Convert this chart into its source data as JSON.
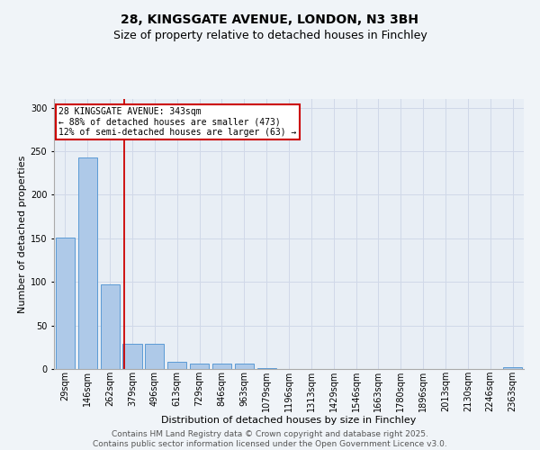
{
  "title": "28, KINGSGATE AVENUE, LONDON, N3 3BH",
  "subtitle": "Size of property relative to detached houses in Finchley",
  "xlabel": "Distribution of detached houses by size in Finchley",
  "ylabel": "Number of detached properties",
  "categories": [
    "29sqm",
    "146sqm",
    "262sqm",
    "379sqm",
    "496sqm",
    "613sqm",
    "729sqm",
    "846sqm",
    "963sqm",
    "1079sqm",
    "1196sqm",
    "1313sqm",
    "1429sqm",
    "1546sqm",
    "1663sqm",
    "1780sqm",
    "1896sqm",
    "2013sqm",
    "2130sqm",
    "2246sqm",
    "2363sqm"
  ],
  "values": [
    151,
    243,
    97,
    29,
    29,
    8,
    6,
    6,
    6,
    1,
    0,
    0,
    0,
    0,
    0,
    0,
    0,
    0,
    0,
    0,
    2
  ],
  "bar_color": "#aec9e8",
  "bar_edge_color": "#5b9bd5",
  "grid_color": "#d0d8e8",
  "bg_color": "#e8eef5",
  "fig_color": "#f0f4f8",
  "vline_x_index": 2.62,
  "vline_color": "#cc0000",
  "annotation_text": "28 KINGSGATE AVENUE: 343sqm\n← 88% of detached houses are smaller (473)\n12% of semi-detached houses are larger (63) →",
  "annotation_box_color": "#cc0000",
  "ylim": [
    0,
    310
  ],
  "yticks": [
    0,
    50,
    100,
    150,
    200,
    250,
    300
  ],
  "footer_line1": "Contains HM Land Registry data © Crown copyright and database right 2025.",
  "footer_line2": "Contains public sector information licensed under the Open Government Licence v3.0.",
  "title_fontsize": 10,
  "subtitle_fontsize": 9,
  "axis_label_fontsize": 8,
  "tick_fontsize": 7,
  "annot_fontsize": 7,
  "footer_fontsize": 6.5
}
